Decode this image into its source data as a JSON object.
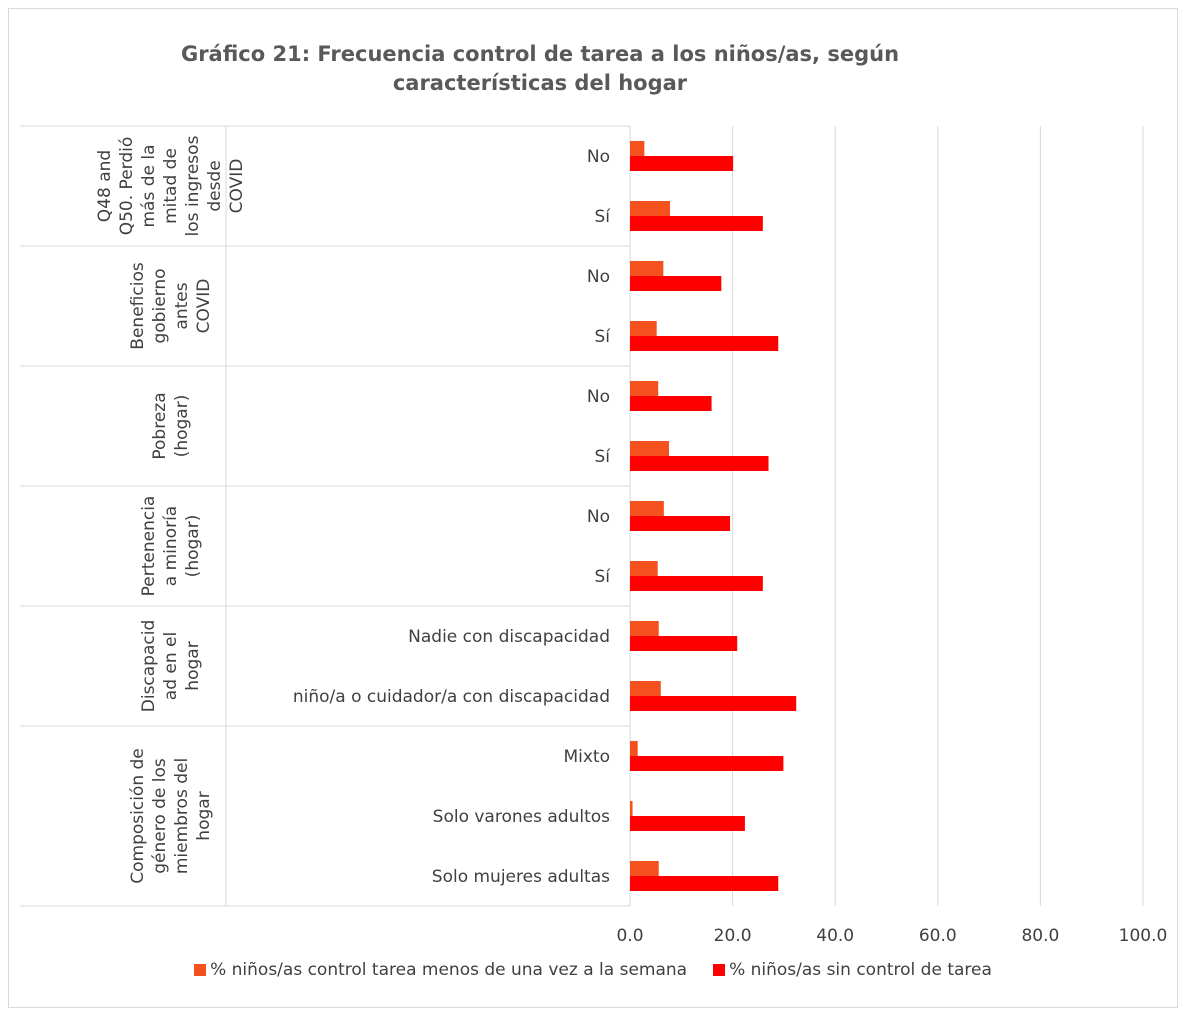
{
  "chart_data": {
    "type": "bar",
    "orientation": "horizontal",
    "title": "Gráfico 21: Frecuencia control de tarea a los niños/as, según características del hogar",
    "title_lines": [
      "Gráfico 21: Frecuencia control de tarea a los niños/as, según",
      "características del hogar"
    ],
    "xlim": [
      0,
      100
    ],
    "x_ticks": [
      "0.0",
      "20.0",
      "40.0",
      "60.0",
      "80.0",
      "100.0"
    ],
    "grid": true,
    "legend_position": "bottom",
    "groups": [
      {
        "label_lines": [
          "Q48 and",
          "Q50. Perdió",
          "más de la",
          "mitad de",
          "los ingresos",
          "desde",
          "COVID"
        ],
        "categories": [
          "No",
          "Sí"
        ]
      },
      {
        "label_lines": [
          "Beneficios",
          "gobierno",
          "antes",
          "COVID"
        ],
        "categories": [
          "No",
          "Sí"
        ]
      },
      {
        "label_lines": [
          "Pobreza",
          "(hogar)"
        ],
        "categories": [
          "No",
          "Sí"
        ]
      },
      {
        "label_lines": [
          "Pertenencia",
          "a minoría",
          "(hogar)"
        ],
        "categories": [
          "No",
          "Sí"
        ]
      },
      {
        "label_lines": [
          "Discapacid",
          "ad en el",
          "hogar"
        ],
        "categories": [
          "Nadie con discapacidad",
          "niño/a o cuidador/a con discapacidad"
        ]
      },
      {
        "label_lines": [
          "Composición de",
          "género de los",
          "miembros del",
          "hogar"
        ],
        "categories": [
          "Mixto",
          "Solo varones adultos",
          "Solo mujeres adultas"
        ]
      }
    ],
    "series": [
      {
        "name": "% niños/as control tarea menos de una vez a la semana",
        "color": "#f4511e",
        "values": [
          2.8,
          7.8,
          6.5,
          5.2,
          5.5,
          7.6,
          6.6,
          5.4,
          5.6,
          6.0,
          1.5,
          0.5,
          5.6
        ]
      },
      {
        "name": "% niños/as sin control de tarea",
        "color": "#ff0000",
        "values": [
          20.1,
          25.9,
          17.8,
          28.9,
          15.9,
          27.0,
          19.5,
          25.9,
          20.9,
          32.4,
          29.9,
          22.4,
          28.9
        ]
      }
    ]
  }
}
